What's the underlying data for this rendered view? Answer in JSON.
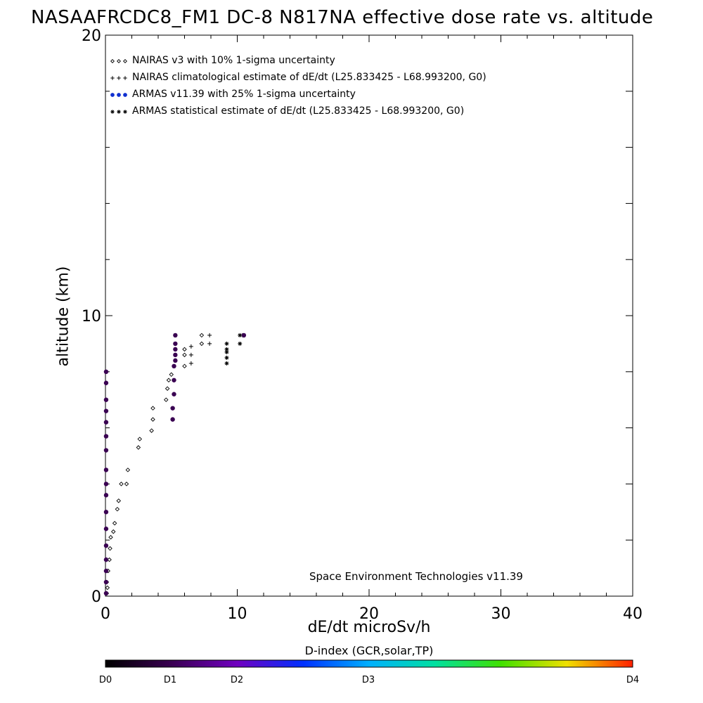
{
  "chart_data": {
    "type": "scatter",
    "title": "NASAAFRCDC8_FM1 DC-8   N817NA effective dose rate vs. altitude",
    "xlabel": "dE/dt microSv/h",
    "ylabel": "altitude (km)",
    "xlim": [
      0,
      40
    ],
    "ylim": [
      0,
      20
    ],
    "x_ticks": [
      "0",
      "10",
      "20",
      "30",
      "40"
    ],
    "y_ticks": [
      "0",
      "10",
      "20"
    ],
    "legend_position": "top-left",
    "legend": [
      {
        "symbol": "◇◇◇",
        "label": "NAIRAS v3 with 10% 1-sigma uncertainty"
      },
      {
        "symbol": "+++",
        "label": "NAIRAS climatological estimate of dE/dt (L25.833425 - L68.993200, G0)"
      },
      {
        "symbol": "●●●",
        "label": "ARMAS v11.39 with 25% 1-sigma uncertainty"
      },
      {
        "symbol": "***",
        "label": "ARMAS statistical estimate of dE/dt (L25.833425 - L68.993200, G0)"
      }
    ],
    "annotation": "Space Environment Technologies v11.39",
    "colorbar": {
      "title": "D-index (GCR,solar,TP)",
      "labels": [
        "D0",
        "D1",
        "D2",
        "D3",
        "D4"
      ]
    },
    "series": [
      {
        "name": "NAIRAS v3 with 10% 1-sigma uncertainty",
        "marker": "diamond",
        "points": [
          [
            0.1,
            0.1
          ],
          [
            0.15,
            0.3
          ],
          [
            0.1,
            0.5
          ],
          [
            0.2,
            0.9
          ],
          [
            0.3,
            1.3
          ],
          [
            0.35,
            1.7
          ],
          [
            0.4,
            2.1
          ],
          [
            0.6,
            2.3
          ],
          [
            0.7,
            2.6
          ],
          [
            0.9,
            3.1
          ],
          [
            1.0,
            3.4
          ],
          [
            1.2,
            4.0
          ],
          [
            1.6,
            4.0
          ],
          [
            1.7,
            4.5
          ],
          [
            2.5,
            5.3
          ],
          [
            2.6,
            5.6
          ],
          [
            3.5,
            5.9
          ],
          [
            3.6,
            6.3
          ],
          [
            3.6,
            6.7
          ],
          [
            4.6,
            7.0
          ],
          [
            4.7,
            7.4
          ],
          [
            4.8,
            7.7
          ],
          [
            5.0,
            7.9
          ],
          [
            6.0,
            8.2
          ],
          [
            6.0,
            8.6
          ],
          [
            6.0,
            8.8
          ],
          [
            7.3,
            9.0
          ],
          [
            7.3,
            9.3
          ]
        ]
      },
      {
        "name": "NAIRAS climatological estimate of dE/dt (L25.833425 - L68.993200, G0)",
        "marker": "plus",
        "points": [
          [
            6.5,
            8.3
          ],
          [
            6.5,
            8.6
          ],
          [
            6.5,
            8.9
          ],
          [
            7.9,
            9.0
          ],
          [
            7.9,
            9.3
          ],
          [
            10.4,
            9.3
          ]
        ]
      },
      {
        "name": "ARMAS v11.39 with 25% 1-sigma uncertainty",
        "marker": "filled-circle",
        "color": "#3a0052",
        "points": [
          [
            0.05,
            0.1
          ],
          [
            0.05,
            0.5
          ],
          [
            0.05,
            0.9
          ],
          [
            0.05,
            1.3
          ],
          [
            0.05,
            1.8
          ],
          [
            0.05,
            2.4
          ],
          [
            0.05,
            3.0
          ],
          [
            0.05,
            3.6
          ],
          [
            0.05,
            4.0
          ],
          [
            0.05,
            4.5
          ],
          [
            0.05,
            5.2
          ],
          [
            0.05,
            5.7
          ],
          [
            0.05,
            6.2
          ],
          [
            0.05,
            6.6
          ],
          [
            0.05,
            7.0
          ],
          [
            0.05,
            7.6
          ],
          [
            0.05,
            8.0
          ],
          [
            5.1,
            6.3
          ],
          [
            5.1,
            6.7
          ],
          [
            5.2,
            7.2
          ],
          [
            5.2,
            7.7
          ],
          [
            5.2,
            8.2
          ],
          [
            5.3,
            8.4
          ],
          [
            5.3,
            8.6
          ],
          [
            5.3,
            8.8
          ],
          [
            5.3,
            9.0
          ],
          [
            5.3,
            9.3
          ],
          [
            10.5,
            9.3
          ]
        ]
      },
      {
        "name": "ARMAS statistical estimate of dE/dt (L25.833425 - L68.993200, G0)",
        "marker": "asterisk",
        "points": [
          [
            9.2,
            8.3
          ],
          [
            9.2,
            8.5
          ],
          [
            9.2,
            8.7
          ],
          [
            9.2,
            8.8
          ],
          [
            9.2,
            9.0
          ],
          [
            10.2,
            9.0
          ],
          [
            10.2,
            9.3
          ]
        ]
      }
    ]
  }
}
